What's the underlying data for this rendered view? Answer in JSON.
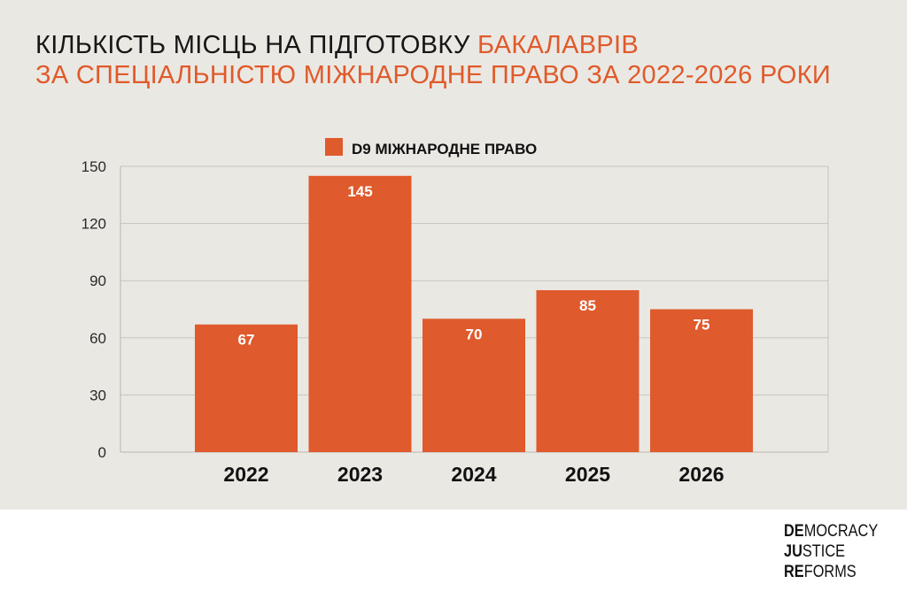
{
  "title": {
    "line1": "КІЛЬКІСТЬ МІСЦЬ НА ПІДГОТОВКУ",
    "line1_accent": "БАКАЛАВРІВ",
    "line2": "ЗА СПЕЦІАЛЬНІСТЮ МІЖНАРОДНЕ ПРАВО ЗА 2022-2026 РОКИ"
  },
  "colors": {
    "accent": "#e05a2b",
    "bar": "#df5a2c",
    "background": "#eae8e3",
    "text": "#161616"
  },
  "chart_data": {
    "type": "bar",
    "categories": [
      "2022",
      "2023",
      "2024",
      "2025",
      "2026"
    ],
    "series": [
      {
        "name": "D9 МІЖНАРОДНЕ ПРАВО",
        "values": [
          67,
          145,
          70,
          85,
          75
        ]
      }
    ],
    "data_labels": [
      "67",
      "145",
      "70",
      "85",
      "75"
    ],
    "y_ticks": [
      "0",
      "30",
      "60",
      "90",
      "120",
      "150"
    ],
    "ylim": [
      0,
      150
    ],
    "grid": true,
    "legend": "top-center"
  },
  "logo": {
    "line1_bold": "DE",
    "line1_rest": "MOCRACY",
    "line2_bold": "JU",
    "line2_rest": "STICE",
    "line3_bold": "RE",
    "line3_rest": "FORMS"
  }
}
